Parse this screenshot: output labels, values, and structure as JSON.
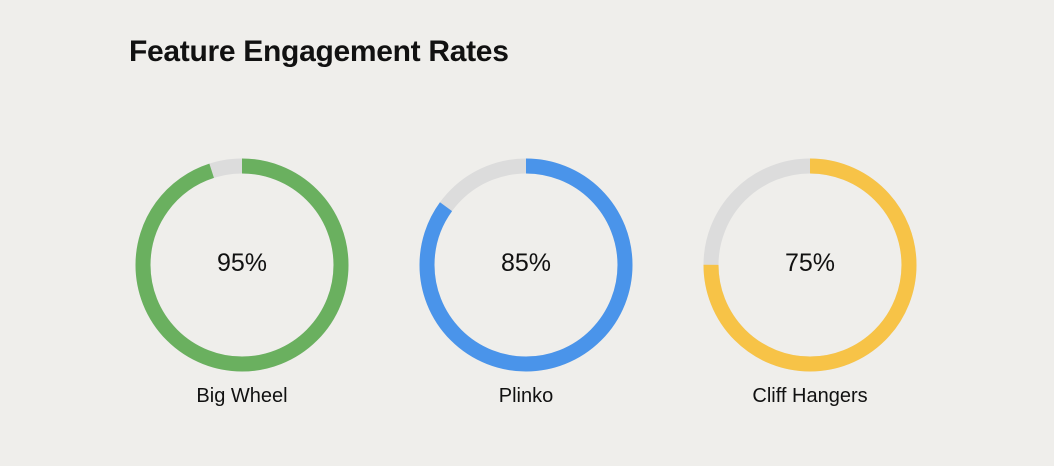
{
  "page": {
    "title": "Feature Engagement Rates"
  },
  "chart_data": {
    "type": "donut",
    "title": "Feature Engagement Rates",
    "max": 100,
    "track_color": "#dcdcdc",
    "items": [
      {
        "name": "Big Wheel",
        "value": 95,
        "value_label": "95%",
        "color": "#6ab05f"
      },
      {
        "name": "Plinko",
        "value": 85,
        "value_label": "85%",
        "color": "#4a94ea"
      },
      {
        "name": "Cliff Hangers",
        "value": 75,
        "value_label": "75%",
        "color": "#f7c347"
      }
    ]
  }
}
